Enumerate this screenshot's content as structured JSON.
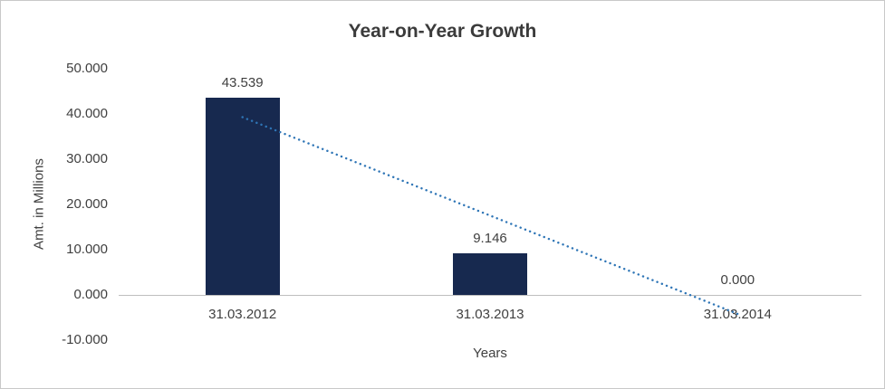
{
  "chart_data": {
    "type": "bar",
    "title": "Year-on-Year Growth",
    "xlabel": "Years",
    "ylabel": "Amt. in Millions",
    "categories": [
      "31.03.2012",
      "31.03.2013",
      "31.03.2014"
    ],
    "values": [
      43.539,
      9.146,
      0.0
    ],
    "value_labels": [
      "43.539",
      "9.146",
      "0.000"
    ],
    "ylim": [
      -10,
      50
    ],
    "ytick_values": [
      50,
      40,
      30,
      20,
      10,
      0,
      -10
    ],
    "ytick_labels": [
      "50.000",
      "40.000",
      "30.000",
      "20.000",
      "10.000",
      "0.000",
      "-10.000"
    ],
    "grid": false,
    "legend": "none",
    "bar_color": "#17294f",
    "axis_line_color": "#bfbfbf",
    "text_color": "#404040",
    "trendline": {
      "style": "dotted",
      "color": "#2e75b6",
      "start_category": "31.03.2012",
      "end_category": "31.03.2014",
      "start_value": 39.3,
      "end_value": -4.2
    }
  }
}
